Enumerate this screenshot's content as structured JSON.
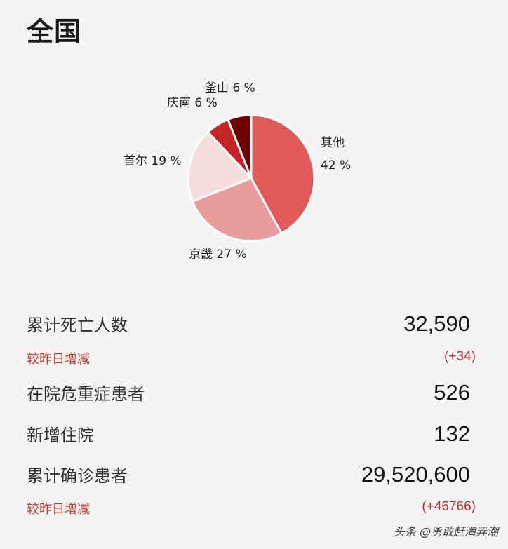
{
  "header": {
    "title": "全国"
  },
  "chart_data": {
    "type": "pie",
    "slices": [
      {
        "name": "其他",
        "value": 42,
        "label": "42 %",
        "color": "#e05a5a"
      },
      {
        "name": "京畿",
        "value": 27,
        "label": "27 %",
        "color": "#e89c9c"
      },
      {
        "name": "首尔",
        "value": 19,
        "label": "19 %",
        "color": "#f7dede"
      },
      {
        "name": "庆南",
        "value": 6,
        "label": "6 %",
        "color": "#c42525"
      },
      {
        "name": "釜山",
        "value": 6,
        "label": "6 %",
        "color": "#6e0000"
      }
    ]
  },
  "stats": {
    "deaths_label": "累计死亡人数",
    "deaths_value": "32,590",
    "deaths_change_label": "较昨日增减",
    "deaths_change_value": "(+34)",
    "critical_label": "在院危重症患者",
    "critical_value": "526",
    "new_hosp_label": "新增住院",
    "new_hosp_value": "132",
    "confirmed_label": "累计确诊患者",
    "confirmed_value": "29,520,600",
    "confirmed_change_label": "较昨日增减",
    "confirmed_change_value": "(+46766)"
  },
  "footer": {
    "watermark": "头条 @勇敢赶海弄潮"
  }
}
